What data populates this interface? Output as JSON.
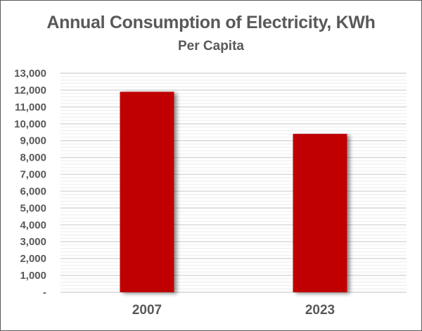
{
  "chart_data": {
    "type": "bar",
    "title": "Annual Consumption of Electricity, KWh",
    "subtitle": "Per Capita",
    "xlabel": "",
    "ylabel": "",
    "categories": [
      "2007",
      "2023"
    ],
    "values": [
      11900,
      9400
    ],
    "ylim": [
      0,
      13000
    ],
    "y_major_step": 1000,
    "y_minor_step": 200,
    "ytick_labels": [
      "-",
      "1,000",
      "2,000",
      "3,000",
      "4,000",
      "5,000",
      "6,000",
      "7,000",
      "8,000",
      "9,000",
      "10,000",
      "11,000",
      "12,000",
      "13,000"
    ],
    "grid": true,
    "legend": "none",
    "bar_color": "#C00000"
  }
}
